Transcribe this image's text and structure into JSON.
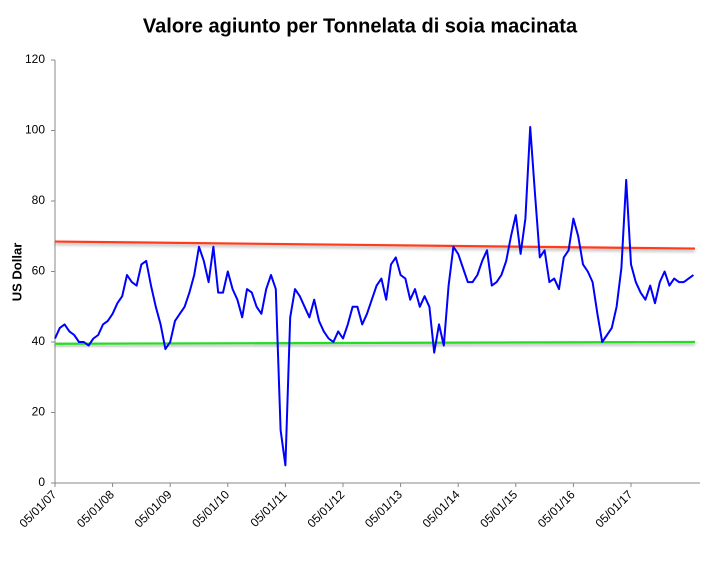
{
  "chart_data": {
    "type": "line",
    "title": "Valore agiunto per Tonnelata di soia macinata",
    "ylabel": "US Dollar",
    "ylim": [
      0,
      120
    ],
    "yticks": [
      0,
      20,
      40,
      60,
      80,
      100,
      120
    ],
    "grid": false,
    "categories": [
      "05/01/07",
      null,
      null,
      null,
      null,
      null,
      null,
      null,
      null,
      null,
      null,
      null,
      "05/01/08",
      null,
      null,
      null,
      null,
      null,
      null,
      null,
      null,
      null,
      null,
      null,
      "05/01/09",
      null,
      null,
      null,
      null,
      null,
      null,
      null,
      null,
      null,
      null,
      null,
      "05/01/10",
      null,
      null,
      null,
      null,
      null,
      null,
      null,
      null,
      null,
      null,
      null,
      "05/01/11",
      null,
      null,
      null,
      null,
      null,
      null,
      null,
      null,
      null,
      null,
      null,
      "05/01/12",
      null,
      null,
      null,
      null,
      null,
      null,
      null,
      null,
      null,
      null,
      null,
      "05/01/13",
      null,
      null,
      null,
      null,
      null,
      null,
      null,
      null,
      null,
      null,
      null,
      "05/01/14",
      null,
      null,
      null,
      null,
      null,
      null,
      null,
      null,
      null,
      null,
      null,
      "05/01/15",
      null,
      null,
      null,
      null,
      null,
      null,
      null,
      null,
      null,
      null,
      null,
      "05/01/16",
      null,
      null,
      null,
      null,
      null,
      null,
      null,
      null,
      null,
      null,
      null,
      "05/01/17",
      null,
      null,
      null,
      null,
      null,
      null,
      null,
      null,
      null,
      null,
      null,
      null,
      null
    ],
    "series": [
      {
        "color": "#0000ff",
        "values": [
          41,
          44,
          45,
          43,
          42,
          40,
          40,
          39,
          41,
          42,
          45,
          46,
          48,
          51,
          53,
          59,
          57,
          56,
          62,
          63,
          56,
          50,
          45,
          38,
          40,
          46,
          48,
          50,
          54,
          59,
          67,
          63,
          57,
          67,
          54,
          54,
          60,
          55,
          52,
          47,
          55,
          54,
          50,
          48,
          55,
          59,
          55,
          15,
          5,
          47,
          55,
          53,
          50,
          47,
          52,
          46,
          43,
          41,
          40,
          43,
          41,
          45,
          50,
          50,
          45,
          48,
          52,
          56,
          58,
          52,
          62,
          64,
          59,
          58,
          52,
          55,
          50,
          53,
          50,
          37,
          45,
          39,
          56,
          67,
          65,
          61,
          57,
          57,
          59,
          63,
          66,
          56,
          57,
          59,
          63,
          70,
          76,
          65,
          75,
          101,
          82,
          64,
          66,
          57,
          58,
          55,
          64,
          66,
          75,
          70,
          62,
          60,
          57,
          48,
          40,
          42,
          44,
          50,
          61,
          86,
          62,
          57,
          54,
          52,
          56,
          51,
          57,
          60,
          56,
          58,
          57,
          57,
          58,
          59
        ]
      }
    ],
    "reference_lines": [
      {
        "color": "#ff3b1f",
        "values": [
          68.5,
          66.5
        ]
      },
      {
        "color": "#22dd22",
        "values": [
          39.5,
          40
        ]
      }
    ]
  }
}
